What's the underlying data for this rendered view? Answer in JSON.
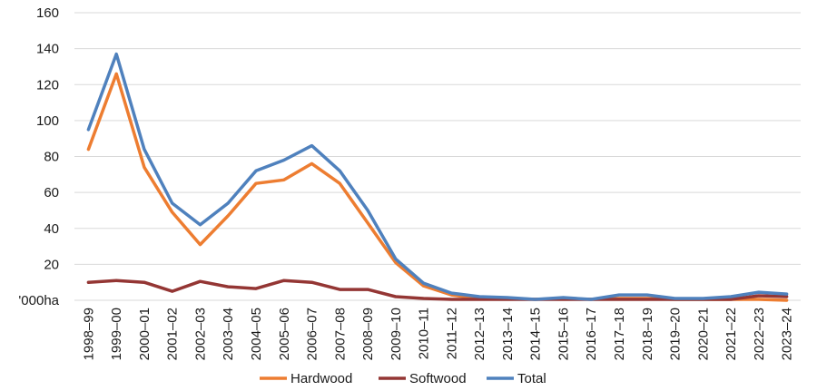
{
  "chart_data": {
    "type": "line",
    "ylabel": "'000ha",
    "ylim": [
      0,
      160
    ],
    "yticks": [
      20,
      40,
      60,
      80,
      100,
      120,
      140,
      160
    ],
    "grid": true,
    "legend_position": "bottom",
    "categories": [
      "1998–99",
      "1999–00",
      "2000–01",
      "2001–02",
      "2002–03",
      "2003–04",
      "2004–05",
      "2005–06",
      "2006–07",
      "2007–08",
      "2008–09",
      "2009–10",
      "2010–11",
      "2011–12",
      "2012–13",
      "2013–14",
      "2014–15",
      "2015–16",
      "2016–17",
      "2017–18",
      "2018–19",
      "2019–20",
      "2020–21",
      "2021–22",
      "2022–23",
      "2023–24"
    ],
    "series": [
      {
        "name": "Hardwood",
        "color": "#ED7D31",
        "values": [
          84,
          126,
          74,
          49,
          31,
          47,
          65,
          67,
          76,
          65,
          43,
          21,
          8,
          3,
          1,
          1,
          0.5,
          1,
          0.5,
          1,
          1,
          0.5,
          0.5,
          0.5,
          0.5,
          0
        ]
      },
      {
        "name": "Softwood",
        "color": "#943634",
        "values": [
          10,
          11,
          10,
          5,
          10.5,
          7.5,
          6.5,
          11,
          10,
          6,
          6,
          2,
          1,
          0.5,
          0.5,
          0.5,
          0.5,
          0.5,
          0.5,
          0.5,
          0.5,
          0.5,
          0.5,
          0.5,
          2.5,
          2
        ]
      },
      {
        "name": "Total",
        "color": "#4F81BD",
        "values": [
          95,
          137,
          84,
          54,
          42,
          54,
          72,
          78,
          86,
          72,
          50,
          23,
          9.5,
          4,
          2,
          1.5,
          0.5,
          1.5,
          0.5,
          3,
          3,
          1,
          1,
          2,
          4.5,
          3.5
        ]
      }
    ]
  }
}
